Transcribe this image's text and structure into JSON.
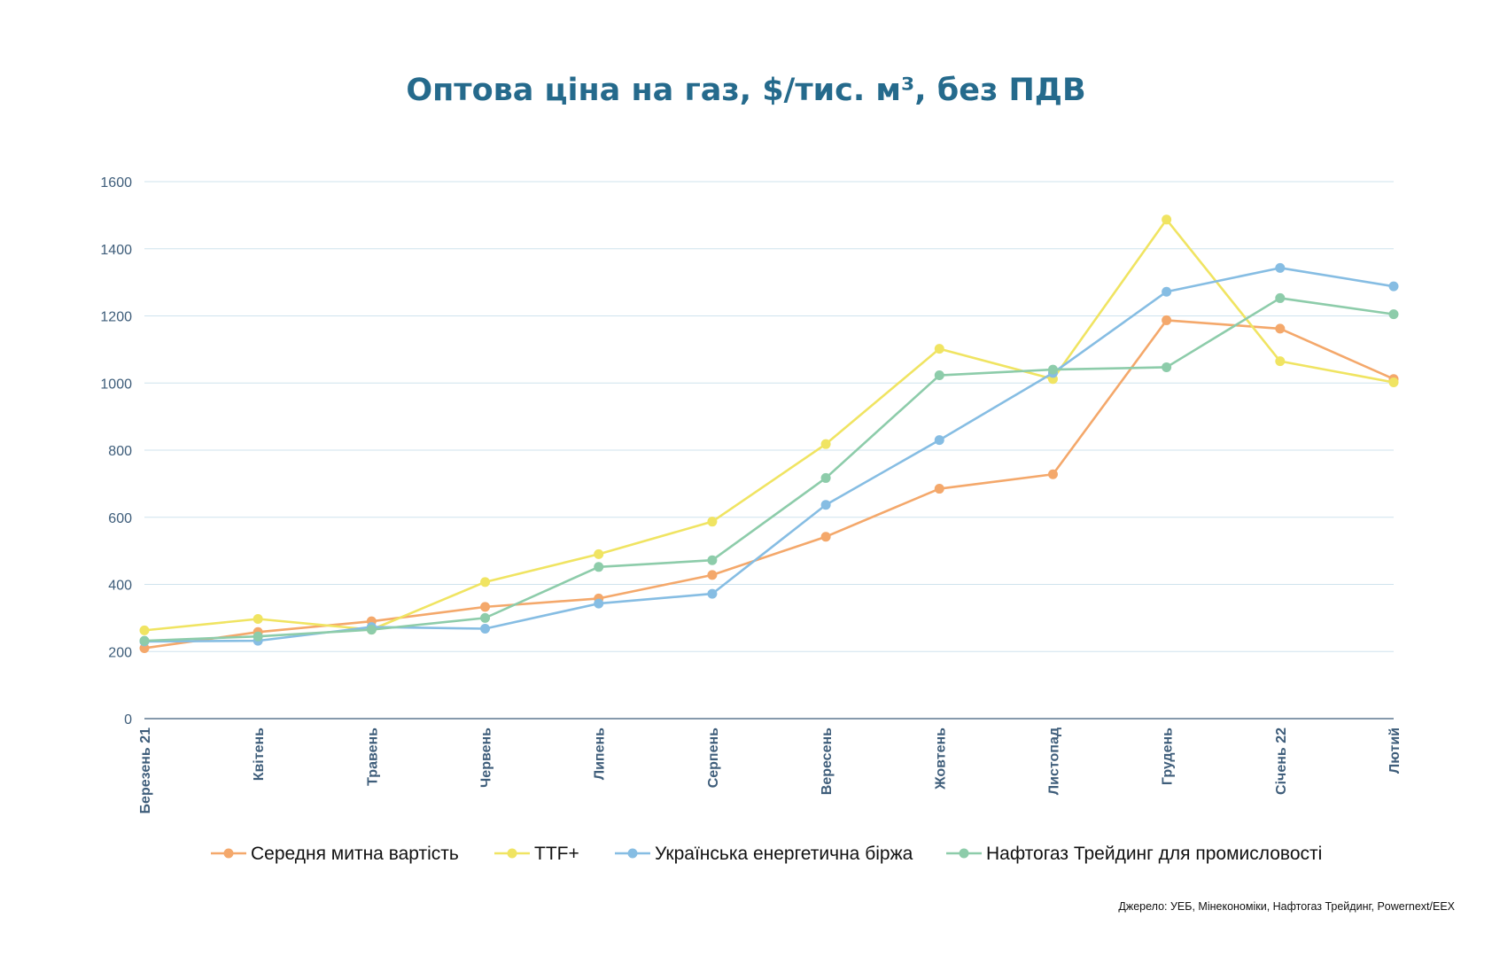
{
  "chart_data": {
    "type": "line",
    "title": "Оптова ціна на газ, $/тис. м³, без ПДВ",
    "categories": [
      "Березень 21",
      "Квітень",
      "Травень",
      "Червень",
      "Липень",
      "Серпень",
      "Вересень",
      "Жовтень",
      "Листопад",
      "Грудень",
      "Січень 22",
      "Лютий"
    ],
    "ylim": [
      0,
      1600
    ],
    "yticks": [
      0,
      200,
      400,
      600,
      800,
      1000,
      1200,
      1400,
      1600
    ],
    "grid": true,
    "legend_position": "bottom",
    "series": [
      {
        "name": "Середня митна вартість",
        "color": "#f4a86b",
        "values": [
          210,
          258,
          290,
          333,
          358,
          428,
          542,
          685,
          728,
          1187,
          1162,
          1012
        ]
      },
      {
        "name": "TTF+",
        "color": "#f0e462",
        "values": [
          263,
          297,
          265,
          407,
          490,
          587,
          818,
          1102,
          1012,
          1487,
          1065,
          1002
        ]
      },
      {
        "name": "Українська енергетична біржа",
        "color": "#86bde3",
        "values": [
          230,
          232,
          273,
          268,
          343,
          372,
          637,
          830,
          1030,
          1272,
          1343,
          1288
        ]
      },
      {
        "name": "Нафтогаз Трейдинг для промисловості",
        "color": "#8dccaa",
        "values": [
          232,
          245,
          265,
          300,
          452,
          472,
          717,
          1023,
          1040,
          1047,
          1253,
          1205
        ]
      }
    ]
  },
  "source_note": "Джерело: УЕБ, Мінекономіки, Нафтогаз Трейдинг, Powernext/EEX",
  "colors": {
    "title": "#256a8c",
    "axis_text": "#3e5d7a",
    "grid": "#cfe3ee",
    "axis": "#3e5d7a"
  }
}
